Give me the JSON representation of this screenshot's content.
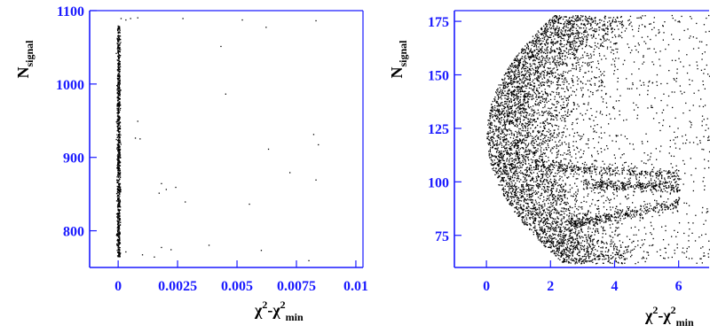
{
  "colors": {
    "axis": "#1a1aff",
    "points": "#000000",
    "text": "#000000"
  },
  "chart_data": [
    {
      "type": "scatter",
      "title": "",
      "xlabel": {
        "base": "χ",
        "sup": "2",
        "mid": "-χ",
        "sup2": "2",
        "sub2": "min"
      },
      "ylabel": {
        "base": "N",
        "sub": "signal"
      },
      "xlim": [
        -0.0012,
        0.0103
      ],
      "ylim": [
        750,
        1100
      ],
      "x_ticks": [
        0,
        0.0025,
        0.005,
        0.0075,
        0.01
      ],
      "x_tick_labels": [
        "0",
        "0.0025",
        "0.005",
        "0.0075",
        "0.01"
      ],
      "y_ticks": [
        800,
        900,
        1000,
        1100
      ],
      "y_tick_labels": [
        "800",
        "900",
        "1000",
        "1100"
      ],
      "grid": false,
      "dense_band": {
        "x": [
          -5e-05,
          5e-05
        ],
        "y": [
          765,
          1080
        ],
        "approx_count": 900
      },
      "points": [
        [
          0.0001,
          1090
        ],
        [
          0.0003,
          1088
        ],
        [
          0.0005,
          1090
        ],
        [
          0.0008,
          1091
        ],
        [
          0.0027,
          1090
        ],
        [
          0.0052,
          1088
        ],
        [
          0.0062,
          1078
        ],
        [
          0.0083,
          1087
        ],
        [
          0.0043,
          1052
        ],
        [
          0.0008,
          950
        ],
        [
          0.0045,
          987
        ],
        [
          0.0082,
          932
        ],
        [
          0.0084,
          918
        ],
        [
          0.0007,
          927
        ],
        [
          0.0009,
          926
        ],
        [
          0.0063,
          912
        ],
        [
          0.0072,
          880
        ],
        [
          0.0018,
          865
        ],
        [
          0.002,
          857
        ],
        [
          0.0017,
          852
        ],
        [
          0.0024,
          860
        ],
        [
          0.0028,
          840
        ],
        [
          0.0055,
          837
        ],
        [
          0.0083,
          870
        ],
        [
          0.0003,
          772
        ],
        [
          0.001,
          768
        ],
        [
          0.0018,
          778
        ],
        [
          0.0022,
          775
        ],
        [
          0.0038,
          781
        ],
        [
          0.006,
          774
        ],
        [
          0.008,
          760
        ],
        [
          0.0015,
          765
        ]
      ]
    },
    {
      "type": "scatter",
      "title": "",
      "xlabel": {
        "base": "χ",
        "sup": "2",
        "mid": "-χ",
        "sup2": "2",
        "sub2": "min"
      },
      "ylabel": {
        "base": "N",
        "sub": "signal"
      },
      "xlim": [
        -1.0,
        7.2
      ],
      "ylim": [
        60,
        180
      ],
      "x_ticks": [
        0,
        2,
        4,
        6
      ],
      "x_tick_labels": [
        "0",
        "2",
        "4",
        "6"
      ],
      "y_ticks": [
        75,
        100,
        125,
        150,
        175
      ],
      "y_tick_labels": [
        "75",
        "100",
        "125",
        "150",
        "175"
      ],
      "grid": false,
      "distribution": {
        "vertex": [
          0.0,
          122
        ],
        "apex_half_height": 56,
        "apex_scale": 2.1,
        "core_x_max": 6.0,
        "sparse_x_max": 7.2,
        "y_range": [
          62,
          178
        ],
        "bands": [
          {
            "start": [
              1.5,
              108
            ],
            "end": [
              6.0,
              103
            ]
          },
          {
            "start": [
              2.5,
              80
            ],
            "end": [
              6.0,
              90
            ]
          },
          {
            "start": [
              3.0,
              99
            ],
            "end": [
              6.0,
              98
            ]
          }
        ],
        "approx_count": 5500
      }
    }
  ]
}
